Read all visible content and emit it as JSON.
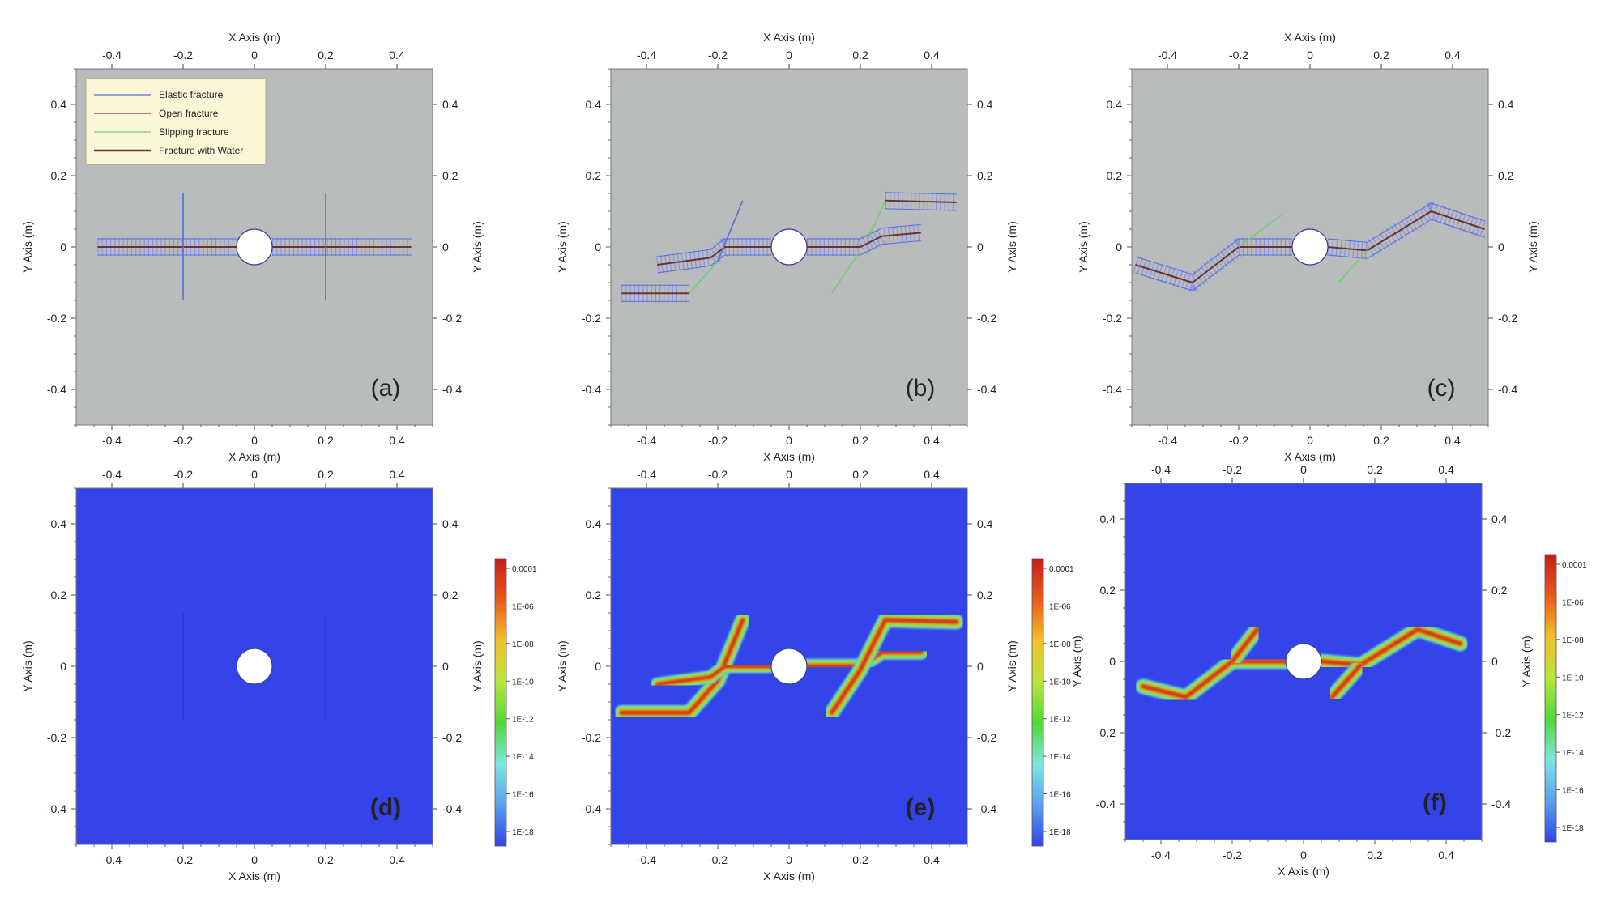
{
  "chart_data": {
    "type": "multi-panel",
    "shared_axes": {
      "xlabel": "X Axis (m)",
      "ylabel": "Y Axis (m)",
      "xlim": [
        -0.5,
        0.5
      ],
      "ylim": [
        -0.5,
        0.5
      ],
      "ticks": [
        -0.4,
        -0.2,
        0,
        0.2,
        0.4
      ],
      "tick_labels": [
        "-0.4",
        "-0.2",
        "0",
        "0.2",
        "0.4"
      ],
      "borehole": {
        "center": [
          0,
          0
        ],
        "radius": 0.05
      }
    },
    "legend": {
      "placement": "top-left",
      "entries": [
        {
          "label": "Elastic fracture",
          "color": "#5b6bd6"
        },
        {
          "label": "Open fracture",
          "color": "#d02020"
        },
        {
          "label": "Slipping fracture",
          "color": "#6fcf6f"
        },
        {
          "label": "Fracture with Water",
          "color": "#6b3232"
        }
      ]
    },
    "colorbar": {
      "scale": "log",
      "labels": [
        "0.0001",
        "1E-06",
        "1E-08",
        "1E-10",
        "1E-12",
        "1E-14",
        "1E-16",
        "1E-18"
      ],
      "colors": [
        "#c81e1e",
        "#e85a1a",
        "#f2c02a",
        "#b8e63a",
        "#4fd83a",
        "#7ee6e0",
        "#5aa0ee",
        "#3344e8"
      ]
    },
    "panels": [
      {
        "label": "(a)",
        "type": "fracture-map",
        "background": "#b8bcbc",
        "fractures": [
          {
            "kind": "water",
            "points": [
              [
                -0.44,
                0
              ],
              [
                -0.05,
                0
              ]
            ]
          },
          {
            "kind": "water",
            "points": [
              [
                0.05,
                0
              ],
              [
                0.44,
                0
              ]
            ]
          },
          {
            "kind": "elastic",
            "points": [
              [
                -0.2,
                0.15
              ],
              [
                -0.2,
                -0.15
              ]
            ]
          },
          {
            "kind": "elastic",
            "points": [
              [
                0.2,
                0.15
              ],
              [
                0.2,
                -0.15
              ]
            ]
          }
        ]
      },
      {
        "label": "(b)",
        "type": "fracture-map",
        "background": "#b8bcbc",
        "fractures": [
          {
            "kind": "water",
            "points": [
              [
                -0.37,
                -0.05
              ],
              [
                -0.22,
                -0.03
              ],
              [
                -0.18,
                0
              ],
              [
                -0.05,
                0
              ]
            ]
          },
          {
            "kind": "water",
            "points": [
              [
                0.05,
                0
              ],
              [
                0.2,
                0
              ],
              [
                0.26,
                0.03
              ],
              [
                0.37,
                0.04
              ]
            ]
          },
          {
            "kind": "water",
            "points": [
              [
                -0.47,
                -0.13
              ],
              [
                -0.28,
                -0.13
              ]
            ]
          },
          {
            "kind": "water",
            "points": [
              [
                0.27,
                0.13
              ],
              [
                0.47,
                0.125
              ]
            ]
          },
          {
            "kind": "slipping",
            "points": [
              [
                -0.28,
                -0.13
              ],
              [
                -0.2,
                -0.04
              ]
            ]
          },
          {
            "kind": "slipping",
            "points": [
              [
                0.12,
                -0.13
              ],
              [
                0.2,
                -0.01
              ]
            ]
          },
          {
            "kind": "slipping",
            "points": [
              [
                0.22,
                0.02
              ],
              [
                0.27,
                0.13
              ]
            ]
          },
          {
            "kind": "elastic",
            "points": [
              [
                -0.2,
                -0.04
              ],
              [
                -0.13,
                0.13
              ]
            ]
          }
        ]
      },
      {
        "label": "(c)",
        "type": "fracture-map",
        "background": "#b8bcbc",
        "fractures": [
          {
            "kind": "water",
            "points": [
              [
                -0.49,
                -0.05
              ],
              [
                -0.33,
                -0.1
              ],
              [
                -0.2,
                0
              ],
              [
                -0.05,
                0
              ]
            ]
          },
          {
            "kind": "water",
            "points": [
              [
                0.05,
                0
              ],
              [
                0.16,
                -0.01
              ],
              [
                0.34,
                0.1
              ],
              [
                0.49,
                0.05
              ]
            ]
          },
          {
            "kind": "slipping",
            "points": [
              [
                -0.2,
                0
              ],
              [
                -0.16,
                0.03
              ],
              [
                -0.08,
                0.09
              ]
            ]
          },
          {
            "kind": "slipping",
            "points": [
              [
                0.08,
                -0.1
              ],
              [
                0.16,
                -0.01
              ]
            ]
          }
        ]
      },
      {
        "label": "(d)",
        "type": "heatmap",
        "background": "#3344e8",
        "channels": [
          {
            "width": 0.034,
            "points": [
              [
                -0.45,
                0
              ],
              [
                -0.05,
                0
              ]
            ]
          },
          {
            "width": 0.034,
            "points": [
              [
                0.05,
                0
              ],
              [
                0.45,
                0
              ]
            ]
          }
        ],
        "faint_lines": [
          [
            [
              -0.2,
              0.15
            ],
            [
              -0.2,
              -0.15
            ]
          ],
          [
            [
              0.2,
              0.15
            ],
            [
              0.2,
              -0.15
            ]
          ]
        ]
      },
      {
        "label": "(e)",
        "type": "heatmap",
        "background": "#3344e8",
        "channels": [
          {
            "width": 0.03,
            "points": [
              [
                -0.47,
                -0.13
              ],
              [
                -0.28,
                -0.13
              ],
              [
                -0.2,
                -0.04
              ],
              [
                -0.13,
                0.13
              ]
            ]
          },
          {
            "width": 0.026,
            "points": [
              [
                -0.37,
                -0.05
              ],
              [
                -0.22,
                -0.03
              ],
              [
                -0.18,
                0
              ],
              [
                -0.05,
                0
              ]
            ]
          },
          {
            "width": 0.03,
            "points": [
              [
                0.05,
                0
              ],
              [
                0.2,
                0
              ],
              [
                0.26,
                0.04
              ],
              [
                0.37,
                0.04
              ]
            ]
          },
          {
            "width": 0.03,
            "points": [
              [
                0.12,
                -0.13
              ],
              [
                0.2,
                -0.01
              ],
              [
                0.27,
                0.13
              ],
              [
                0.47,
                0.125
              ]
            ]
          }
        ]
      },
      {
        "label": "(f)",
        "type": "heatmap",
        "background": "#3344e8",
        "channels": [
          {
            "width": 0.03,
            "points": [
              [
                -0.45,
                -0.07
              ],
              [
                -0.33,
                -0.1
              ],
              [
                -0.2,
                0
              ],
              [
                -0.05,
                0
              ]
            ]
          },
          {
            "width": 0.03,
            "points": [
              [
                -0.2,
                0
              ],
              [
                -0.13,
                0.09
              ]
            ]
          },
          {
            "width": 0.03,
            "points": [
              [
                0.05,
                0
              ],
              [
                0.16,
                -0.01
              ],
              [
                0.32,
                0.09
              ],
              [
                0.44,
                0.05
              ]
            ]
          },
          {
            "width": 0.03,
            "points": [
              [
                0.08,
                -0.1
              ],
              [
                0.16,
                -0.01
              ]
            ]
          }
        ]
      }
    ]
  }
}
